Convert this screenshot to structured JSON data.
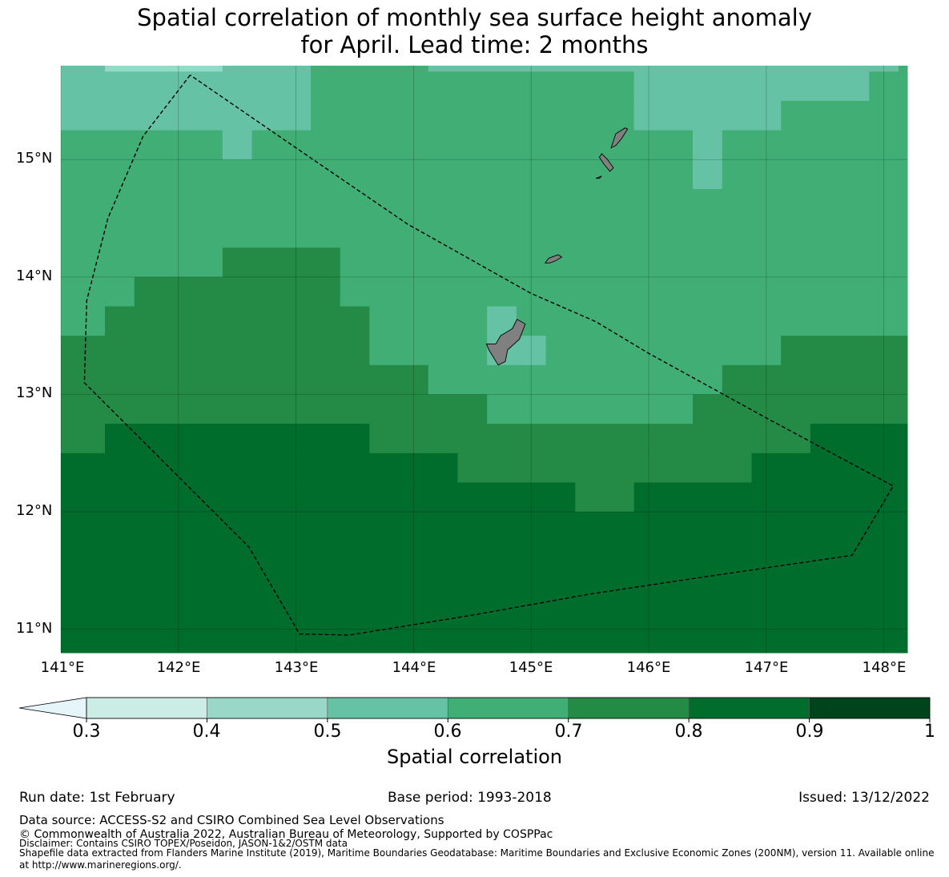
{
  "title_line1": "Spatial correlation of monthly sea surface height anomaly",
  "title_line2": "for April. Lead time: 2 months",
  "map": {
    "lon_range": [
      141.0,
      148.2
    ],
    "lat_range": [
      10.8,
      15.8
    ],
    "lat_ticks": [
      {
        "value": 15,
        "label": "15°N"
      },
      {
        "value": 14,
        "label": "14°N"
      },
      {
        "value": 13,
        "label": "13°N"
      },
      {
        "value": 12,
        "label": "12°N"
      },
      {
        "value": 11,
        "label": "11°N"
      }
    ],
    "lon_ticks": [
      {
        "value": 141,
        "label": "141°E"
      },
      {
        "value": 142,
        "label": "142°E"
      },
      {
        "value": 143,
        "label": "143°E"
      },
      {
        "value": 144,
        "label": "144°E"
      },
      {
        "value": 145,
        "label": "145°E"
      },
      {
        "value": 146,
        "label": "146°E"
      },
      {
        "value": 147,
        "label": "147°E"
      },
      {
        "value": 148,
        "label": "148°E"
      }
    ],
    "land_color": "#808080",
    "boundary_style": "dashed black line (Exclusive Economic Zone)",
    "eez_boundary": [
      [
        142.1,
        15.72
      ],
      [
        141.7,
        15.2
      ],
      [
        141.4,
        14.5
      ],
      [
        141.22,
        13.8
      ],
      [
        141.2,
        13.1
      ],
      [
        141.4,
        12.9
      ],
      [
        142.0,
        12.3
      ],
      [
        142.6,
        11.7
      ],
      [
        143.03,
        10.96
      ],
      [
        143.45,
        10.95
      ],
      [
        144.5,
        11.12
      ],
      [
        145.5,
        11.3
      ],
      [
        146.5,
        11.45
      ],
      [
        147.73,
        11.63
      ],
      [
        148.08,
        12.22
      ],
      [
        147.0,
        12.8
      ],
      [
        146.0,
        13.35
      ],
      [
        145.55,
        13.62
      ],
      [
        145.0,
        13.86
      ],
      [
        143.95,
        14.45
      ],
      [
        143.0,
        15.1
      ],
      [
        142.1,
        15.72
      ]
    ],
    "islands": [
      [
        [
          144.62,
          13.43
        ],
        [
          144.64,
          13.38
        ],
        [
          144.72,
          13.25
        ],
        [
          144.78,
          13.28
        ],
        [
          144.8,
          13.38
        ],
        [
          144.9,
          13.47
        ],
        [
          144.95,
          13.6
        ],
        [
          144.88,
          13.64
        ],
        [
          144.84,
          13.56
        ],
        [
          144.74,
          13.5
        ],
        [
          144.7,
          13.43
        ],
        [
          144.62,
          13.43
        ]
      ],
      [
        [
          145.12,
          14.12
        ],
        [
          145.15,
          14.16
        ],
        [
          145.23,
          14.19
        ],
        [
          145.26,
          14.17
        ],
        [
          145.21,
          14.14
        ],
        [
          145.16,
          14.12
        ],
        [
          145.12,
          14.12
        ]
      ],
      [
        [
          145.55,
          14.84
        ],
        [
          145.6,
          14.86
        ],
        [
          145.58,
          14.84
        ],
        [
          145.55,
          14.84
        ]
      ],
      [
        [
          145.6,
          15.05
        ],
        [
          145.65,
          15.0
        ],
        [
          145.7,
          14.93
        ],
        [
          145.67,
          14.9
        ],
        [
          145.62,
          14.96
        ],
        [
          145.58,
          15.02
        ],
        [
          145.6,
          15.05
        ]
      ],
      [
        [
          145.68,
          15.1
        ],
        [
          145.72,
          15.22
        ],
        [
          145.8,
          15.27
        ],
        [
          145.82,
          15.26
        ],
        [
          145.77,
          15.18
        ],
        [
          145.72,
          15.12
        ],
        [
          145.68,
          15.1
        ]
      ]
    ],
    "correlation_grid": {
      "lon_edges": [
        141.0,
        141.375,
        141.625,
        142.375,
        142.625,
        143.125,
        143.375,
        143.625,
        144.125,
        144.375,
        144.625,
        144.875,
        145.125,
        145.375,
        145.625,
        145.875,
        146.125,
        146.375,
        146.625,
        146.875,
        147.125,
        147.375,
        147.625,
        147.875,
        148.125,
        148.2
      ],
      "lat_edges": [
        15.8,
        15.75,
        15.5,
        15.25,
        15.0,
        14.75,
        14.25,
        14.0,
        13.75,
        13.5,
        13.25,
        13.0,
        12.75,
        12.5,
        12.25,
        12.0,
        10.8
      ],
      "bands": [
        {
          "lat": [
            15.75,
            15.8
          ],
          "segments": [
            [
              141.0,
              141.375,
              0.55
            ],
            [
              141.375,
              142.375,
              0.45
            ],
            [
              142.375,
              143.125,
              0.55
            ],
            [
              143.125,
              144.125,
              0.65
            ],
            [
              144.125,
              144.625,
              0.55
            ],
            [
              144.625,
              147.875,
              0.55
            ],
            [
              147.875,
              148.125,
              0.55
            ],
            [
              148.125,
              148.2,
              0.65
            ]
          ]
        },
        {
          "lat": [
            15.5,
            15.75
          ],
          "segments": [
            [
              141.0,
              143.125,
              0.55
            ],
            [
              143.125,
              145.875,
              0.65
            ],
            [
              145.875,
              147.875,
              0.55
            ],
            [
              147.875,
              148.2,
              0.65
            ]
          ]
        },
        {
          "lat": [
            15.25,
            15.5
          ],
          "segments": [
            [
              141.0,
              143.125,
              0.55
            ],
            [
              143.125,
              145.875,
              0.65
            ],
            [
              145.875,
              147.125,
              0.55
            ],
            [
              147.125,
              148.2,
              0.65
            ]
          ]
        },
        {
          "lat": [
            15.0,
            15.25
          ],
          "segments": [
            [
              141.0,
              142.375,
              0.65
            ],
            [
              142.375,
              142.625,
              0.55
            ],
            [
              142.625,
              146.375,
              0.65
            ],
            [
              146.375,
              146.625,
              0.55
            ],
            [
              146.625,
              148.2,
              0.65
            ]
          ]
        },
        {
          "lat": [
            14.75,
            15.0
          ],
          "segments": [
            [
              141.0,
              146.375,
              0.65
            ],
            [
              146.375,
              146.625,
              0.55
            ],
            [
              146.625,
              148.2,
              0.65
            ]
          ]
        },
        {
          "lat": [
            14.25,
            14.75
          ],
          "segments": [
            [
              141.0,
              148.2,
              0.65
            ]
          ]
        },
        {
          "lat": [
            14.0,
            14.25
          ],
          "segments": [
            [
              141.0,
              142.375,
              0.65
            ],
            [
              142.375,
              143.375,
              0.75
            ],
            [
              143.375,
              148.2,
              0.65
            ]
          ]
        },
        {
          "lat": [
            13.75,
            14.0
          ],
          "segments": [
            [
              141.0,
              141.625,
              0.65
            ],
            [
              141.625,
              143.375,
              0.75
            ],
            [
              143.375,
              148.2,
              0.65
            ]
          ]
        },
        {
          "lat": [
            13.5,
            13.75
          ],
          "segments": [
            [
              141.0,
              141.375,
              0.65
            ],
            [
              141.375,
              143.625,
              0.75
            ],
            [
              143.625,
              144.625,
              0.65
            ],
            [
              144.625,
              144.875,
              0.55
            ],
            [
              144.875,
              148.2,
              0.65
            ]
          ]
        },
        {
          "lat": [
            13.25,
            13.5
          ],
          "segments": [
            [
              141.0,
              143.625,
              0.75
            ],
            [
              143.625,
              144.625,
              0.65
            ],
            [
              144.625,
              145.125,
              0.55
            ],
            [
              145.125,
              147.125,
              0.65
            ],
            [
              147.125,
              148.2,
              0.75
            ]
          ]
        },
        {
          "lat": [
            13.0,
            13.25
          ],
          "segments": [
            [
              141.0,
              144.125,
              0.75
            ],
            [
              144.125,
              146.625,
              0.65
            ],
            [
              146.625,
              148.2,
              0.75
            ]
          ]
        },
        {
          "lat": [
            12.75,
            13.0
          ],
          "segments": [
            [
              141.0,
              144.625,
              0.75
            ],
            [
              144.625,
              146.375,
              0.65
            ],
            [
              146.375,
              148.2,
              0.75
            ]
          ]
        },
        {
          "lat": [
            12.5,
            12.75
          ],
          "segments": [
            [
              141.0,
              141.375,
              0.75
            ],
            [
              141.375,
              143.625,
              0.85
            ],
            [
              143.625,
              147.375,
              0.75
            ],
            [
              147.375,
              148.2,
              0.85
            ]
          ]
        },
        {
          "lat": [
            12.25,
            12.5
          ],
          "segments": [
            [
              141.0,
              144.375,
              0.85
            ],
            [
              144.375,
              146.875,
              0.75
            ],
            [
              146.875,
              148.2,
              0.85
            ]
          ]
        },
        {
          "lat": [
            12.0,
            12.25
          ],
          "segments": [
            [
              141.0,
              145.375,
              0.85
            ],
            [
              145.375,
              145.875,
              0.75
            ],
            [
              145.875,
              148.2,
              0.85
            ]
          ]
        },
        {
          "lat": [
            10.8,
            12.0
          ],
          "segments": [
            [
              141.0,
              148.2,
              0.85
            ]
          ]
        }
      ]
    }
  },
  "colorbar": {
    "label": "Spatial correlation",
    "boundaries": [
      0.3,
      0.4,
      0.5,
      0.6,
      0.7,
      0.8,
      0.9,
      1.0
    ],
    "tick_labels": [
      "0.3",
      "0.4",
      "0.5",
      "0.6",
      "0.7",
      "0.8",
      "0.9",
      "1"
    ],
    "colors": [
      "#ccece6",
      "#99d8c9",
      "#66c2a4",
      "#41ae76",
      "#238b45",
      "#006d2c",
      "#00441b"
    ],
    "under_color": "#e5f5f9",
    "extend": "min"
  },
  "footer": {
    "run_date": "Run date: 1st February",
    "base_period": "Base period: 1993-2018",
    "issued": "Issued: 13/12/2022",
    "data_source": "Data source: ACCESS-S2 and CSIRO Combined Sea Level Observations",
    "copyright": "© Commonwealth of Australia 2022, Australian Bureau of Meteorology, Supported by COSPPac",
    "disclaimer": "Disclaimer: Contains CSIRO TOPEX/Poseidon, JASON-1&2/OSTM data",
    "shapefile_line1": "Shapefile data extracted from Flanders Marine Institute (2019), Maritime Boundaries Geodatabase: Maritime Boundaries and Exclusive Economic Zones (200NM), version 11. Available online",
    "shapefile_line2": "at http://www.marineregions.org/."
  }
}
